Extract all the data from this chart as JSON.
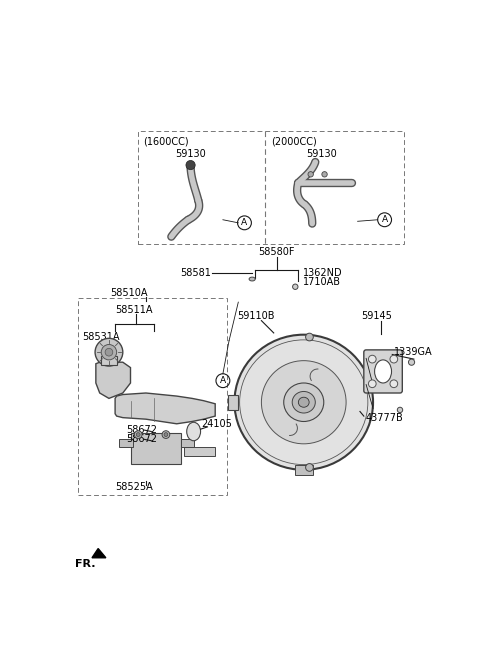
{
  "bg_color": "#ffffff",
  "fig_width": 4.8,
  "fig_height": 6.57,
  "dpi": 100,
  "labels": {
    "1600CC": "(1600CC)",
    "2000CC": "(2000CC)",
    "59130_1": "59130",
    "59130_2": "59130",
    "58580F": "58580F",
    "58581": "58581",
    "1362ND": "1362ND",
    "1710AB": "1710AB",
    "58510A": "58510A",
    "58511A": "58511A",
    "58531A": "58531A",
    "58672_1": "58672",
    "58672_2": "58672",
    "24105": "24105",
    "58525A": "58525A",
    "59110B": "59110B",
    "59145": "59145",
    "1339GA": "1339GA",
    "43777B": "43777B",
    "FR": "FR."
  },
  "line_color": "#1a1a1a",
  "part_fill": "#d8d8d8",
  "part_edge": "#333333",
  "text_color": "#000000"
}
